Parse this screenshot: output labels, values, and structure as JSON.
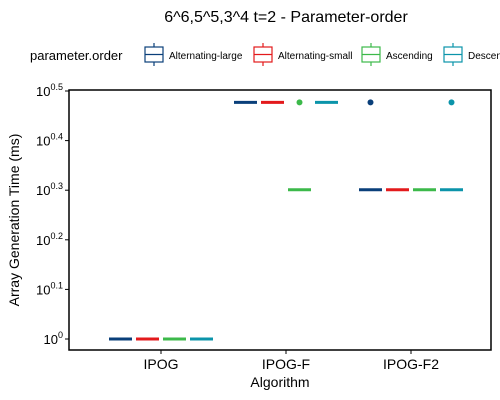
{
  "chart_data": {
    "type": "boxplot",
    "title": "6^6,5^5,3^4 t=2 - Parameter-order",
    "xlabel": "Algorithm",
    "ylabel": "Array Generation Time (ms)",
    "y_scale": "log10",
    "ylim_exponent": [
      0,
      0.5
    ],
    "y_ticks": [
      {
        "exp": 0,
        "base": "10",
        "sup": "0"
      },
      {
        "exp": 0.1,
        "base": "10",
        "sup": "0.1"
      },
      {
        "exp": 0.2,
        "base": "10",
        "sup": "0.2"
      },
      {
        "exp": 0.3,
        "base": "10",
        "sup": "0.3"
      },
      {
        "exp": 0.4,
        "base": "10",
        "sup": "0.4"
      },
      {
        "exp": 0.5,
        "base": "10",
        "sup": "0.5"
      }
    ],
    "categories": [
      "IPOG",
      "IPOG-F",
      "IPOG-F2"
    ],
    "legend": {
      "title": "parameter.order",
      "position": "top",
      "entries": [
        "Alternating-large",
        "Alternating-small",
        "Ascending",
        "Descending"
      ]
    },
    "series": [
      {
        "name": "Alternating-large",
        "color": "#0a3f7a",
        "medians_exp": [
          0,
          0.477,
          0.301
        ],
        "outliers_exp": [
          [],
          [],
          [
            0.477
          ]
        ]
      },
      {
        "name": "Alternating-small",
        "color": "#e31a1c",
        "medians_exp": [
          0,
          0.477,
          0.301
        ],
        "outliers_exp": [
          [],
          [],
          []
        ]
      },
      {
        "name": "Ascending",
        "color": "#3cb94a",
        "medians_exp": [
          0,
          0.301,
          0.301
        ],
        "outliers_exp": [
          [],
          [
            0.477
          ],
          []
        ]
      },
      {
        "name": "Descending",
        "color": "#0b94aa",
        "medians_exp": [
          0,
          0.477,
          0.301
        ],
        "outliers_exp": [
          [],
          [],
          [
            0.477
          ]
        ]
      }
    ]
  }
}
